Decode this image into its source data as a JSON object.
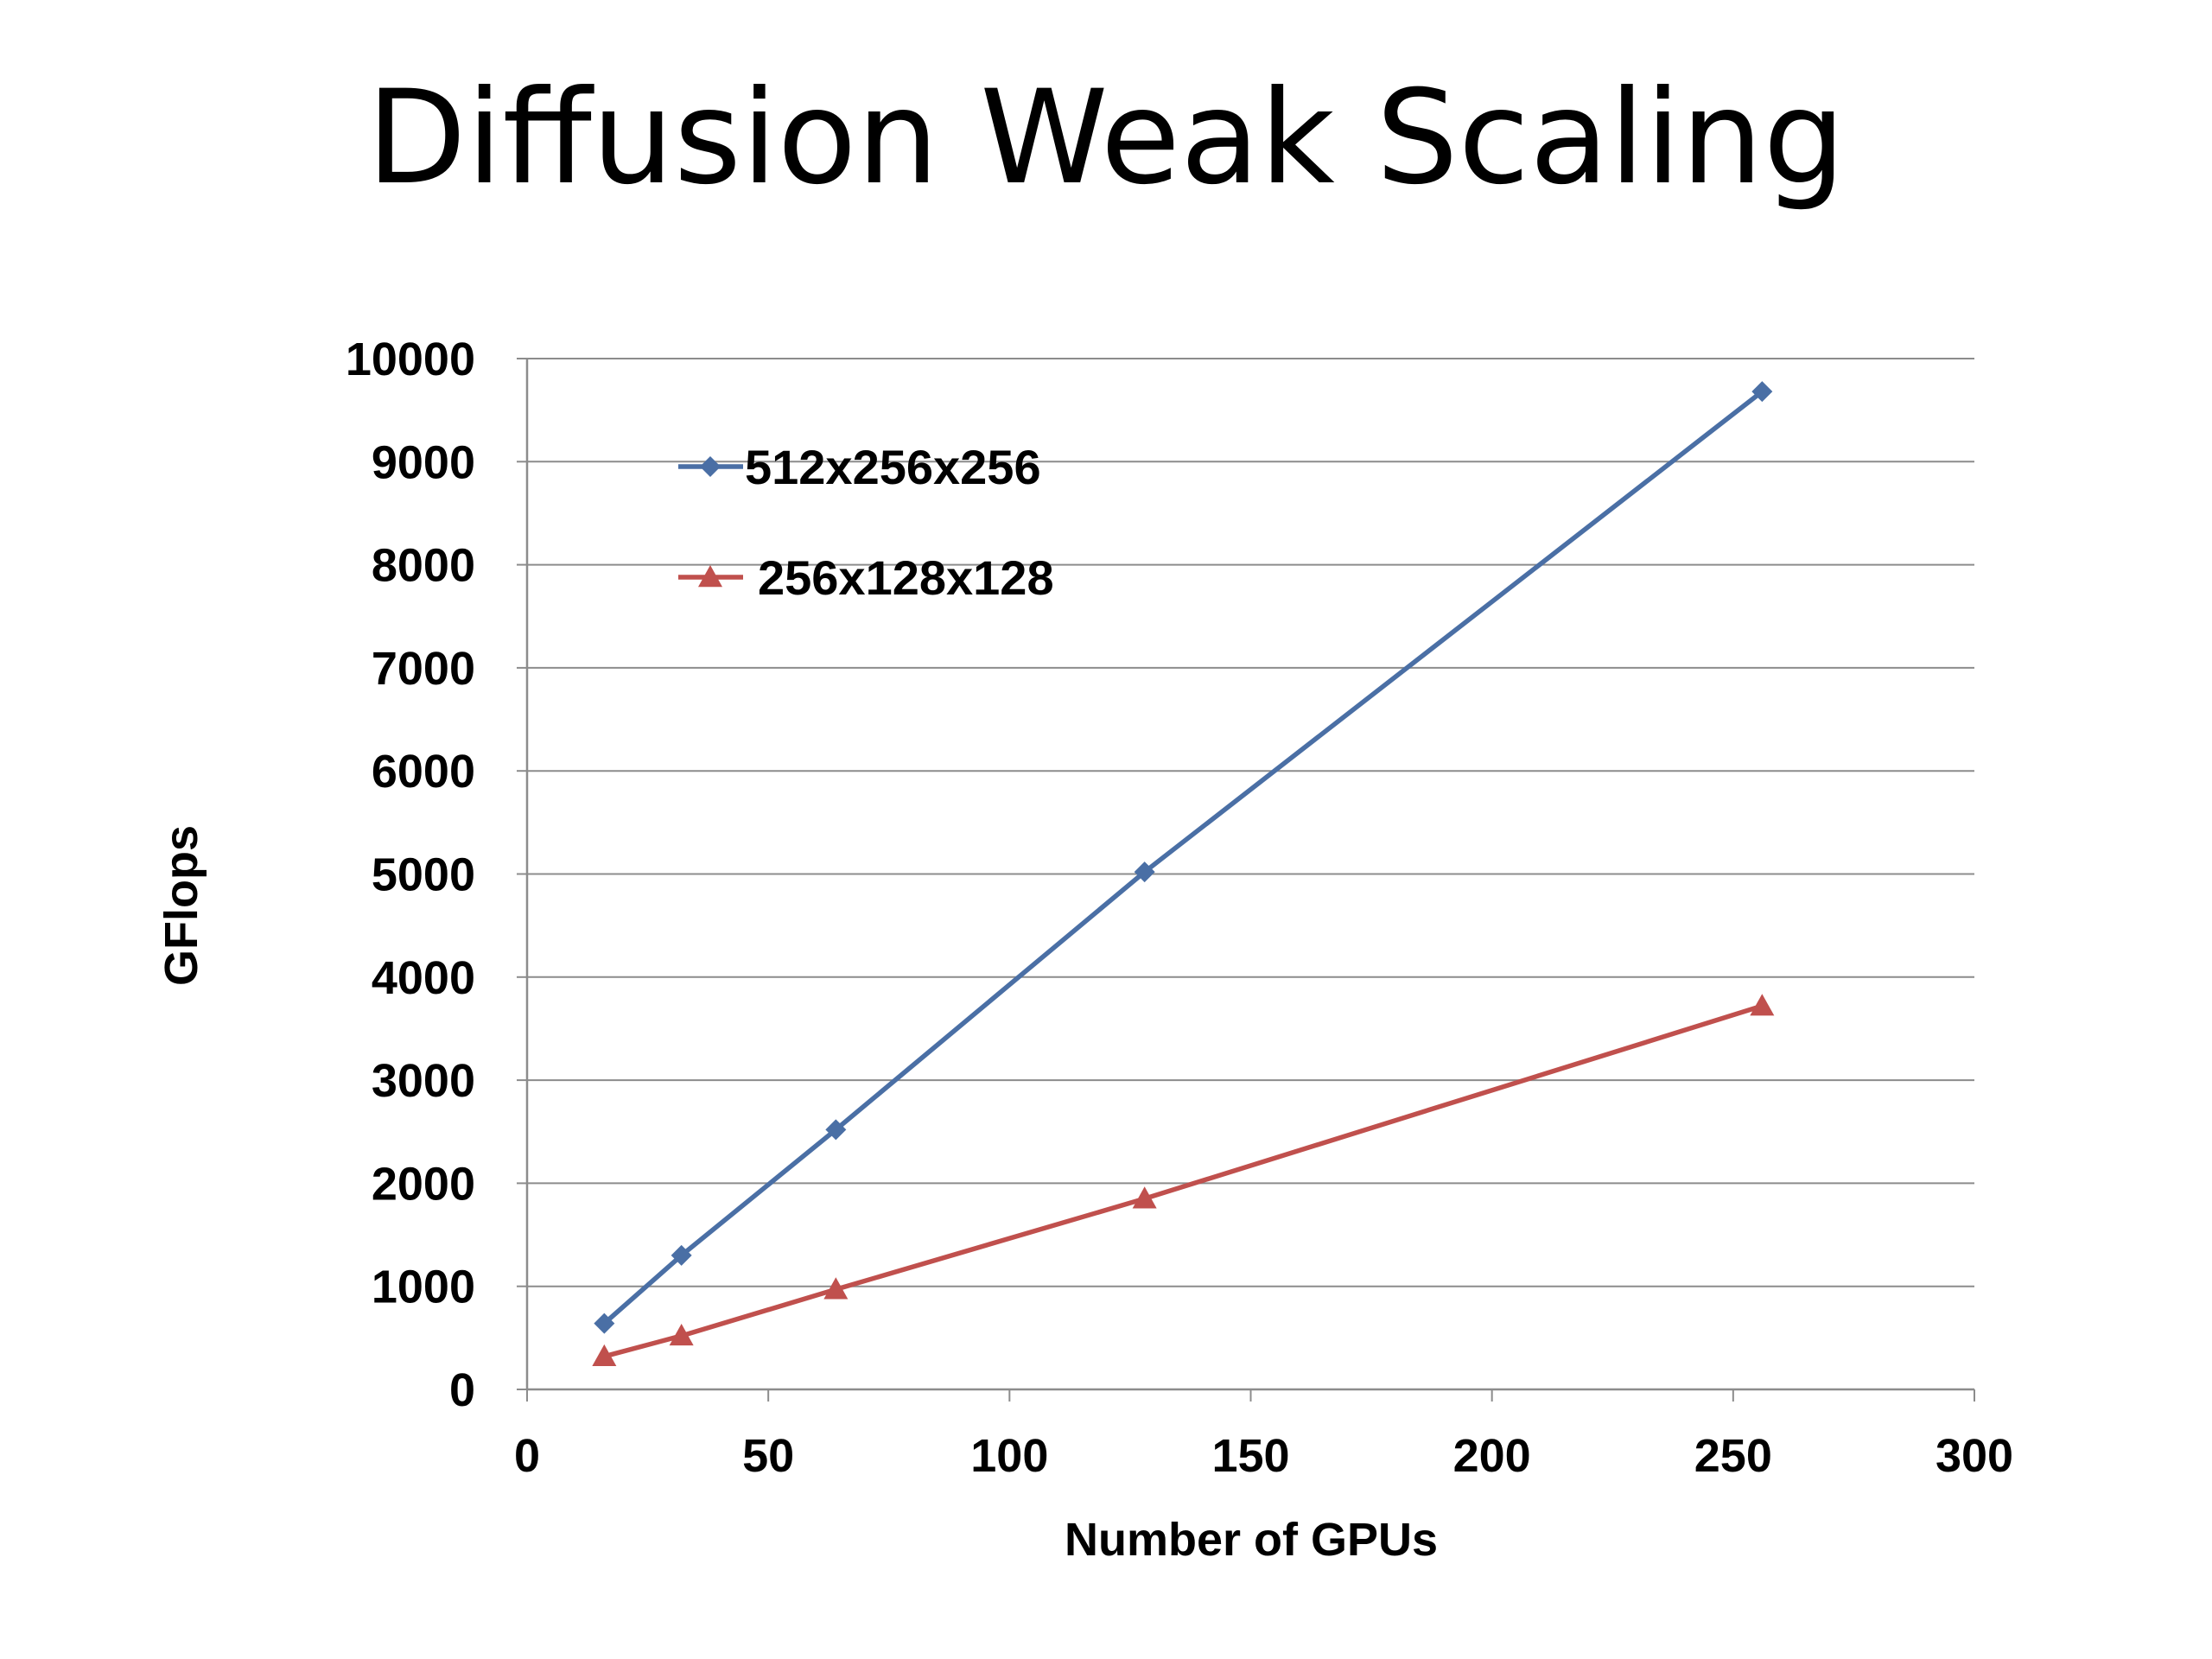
{
  "title": "Diffusion Weak Scaling",
  "chart_data": {
    "type": "line",
    "title": "Diffusion Weak Scaling",
    "xlabel": "Number of GPUs",
    "ylabel": "GFlops",
    "xlim": [
      0,
      300
    ],
    "ylim": [
      0,
      10000
    ],
    "xticks": [
      0,
      50,
      100,
      150,
      200,
      250,
      300
    ],
    "yticks": [
      0,
      1000,
      2000,
      3000,
      4000,
      5000,
      6000,
      7000,
      8000,
      9000,
      10000
    ],
    "grid": "horizontal",
    "legend_position": "top-left",
    "series": [
      {
        "name": "512x256x256",
        "color": "#4a6fa5",
        "marker": "diamond",
        "x": [
          16,
          32,
          64,
          128,
          256
        ],
        "y": [
          640,
          1300,
          2520,
          5020,
          9680
        ]
      },
      {
        "name": "256x128x128",
        "color": "#c0504d",
        "marker": "triangle",
        "x": [
          16,
          32,
          64,
          128,
          256
        ],
        "y": [
          320,
          520,
          970,
          1850,
          3720
        ]
      }
    ]
  }
}
